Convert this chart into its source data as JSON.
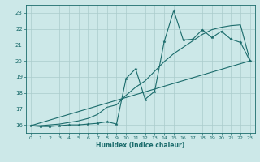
{
  "xlabel": "Humidex (Indice chaleur)",
  "bg_color": "#cce8e8",
  "grid_color": "#aacccc",
  "line_color": "#1a6b6b",
  "xmin": -0.5,
  "xmax": 23.5,
  "ymin": 15.5,
  "ymax": 23.5,
  "yticks": [
    16,
    17,
    18,
    19,
    20,
    21,
    22,
    23
  ],
  "xticks": [
    0,
    1,
    2,
    3,
    4,
    5,
    6,
    7,
    8,
    9,
    10,
    11,
    12,
    13,
    14,
    15,
    16,
    17,
    18,
    19,
    20,
    21,
    22,
    23
  ],
  "line1_x": [
    0,
    1,
    2,
    3,
    4,
    5,
    6,
    7,
    8,
    9,
    10,
    11,
    12,
    13,
    14,
    15,
    16,
    17,
    18,
    19,
    20,
    21,
    22,
    23
  ],
  "line1_y": [
    15.95,
    15.9,
    15.9,
    15.95,
    16.0,
    16.0,
    16.05,
    16.1,
    16.2,
    16.05,
    18.9,
    19.5,
    17.6,
    18.1,
    21.2,
    23.15,
    21.3,
    21.35,
    21.95,
    21.45,
    21.85,
    21.35,
    21.15,
    20.0
  ],
  "line2_x": [
    0,
    23
  ],
  "line2_y": [
    15.95,
    20.0
  ],
  "line3_x": [
    0,
    1,
    2,
    3,
    4,
    5,
    6,
    7,
    8,
    9,
    10,
    11,
    12,
    13,
    14,
    15,
    16,
    17,
    18,
    19,
    20,
    21,
    22,
    23
  ],
  "line3_y": [
    15.95,
    15.95,
    16.0,
    16.05,
    16.15,
    16.25,
    16.4,
    16.65,
    17.1,
    17.25,
    17.85,
    18.35,
    18.75,
    19.35,
    19.95,
    20.45,
    20.85,
    21.25,
    21.65,
    21.95,
    22.1,
    22.2,
    22.25,
    20.0
  ]
}
